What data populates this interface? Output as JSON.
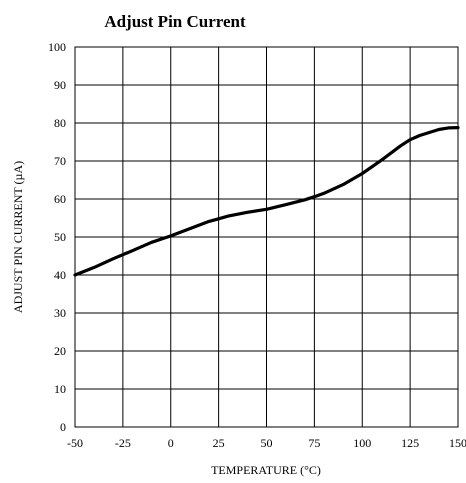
{
  "chart_data": {
    "type": "line",
    "title": "Adjust Pin Current",
    "xlabel": "TEMPERATURE (°C)",
    "ylabel": "ADJUST PIN CURRENT (µA)",
    "xlim": [
      -50,
      150
    ],
    "ylim": [
      0,
      100
    ],
    "x_ticks": [
      -50,
      -25,
      0,
      25,
      50,
      75,
      100,
      125,
      150
    ],
    "y_ticks": [
      0,
      10,
      20,
      30,
      40,
      50,
      60,
      70,
      80,
      90,
      100
    ],
    "x_tick_labels": [
      "-50",
      "-25",
      "0",
      "25",
      "50",
      "75",
      "100",
      "125",
      "150"
    ],
    "y_tick_labels": [
      "0",
      "10",
      "20",
      "30",
      "40",
      "50",
      "60",
      "70",
      "80",
      "90",
      "100"
    ],
    "grid": true,
    "legend": "none",
    "series": [
      {
        "x": [
          -50,
          -40,
          -30,
          -20,
          -10,
          0,
          10,
          20,
          25,
          30,
          40,
          50,
          60,
          70,
          75,
          80,
          90,
          100,
          110,
          120,
          125,
          130,
          140,
          145,
          150
        ],
        "y": [
          40,
          42,
          44.3,
          46.4,
          48.6,
          50.3,
          52.2,
          54.1,
          54.8,
          55.5,
          56.5,
          57.3,
          58.5,
          59.8,
          60.6,
          61.5,
          63.8,
          66.7,
          70.2,
          74,
          75.6,
          76.7,
          78.3,
          78.7,
          78.8
        ]
      }
    ],
    "line_color": "#000000"
  }
}
